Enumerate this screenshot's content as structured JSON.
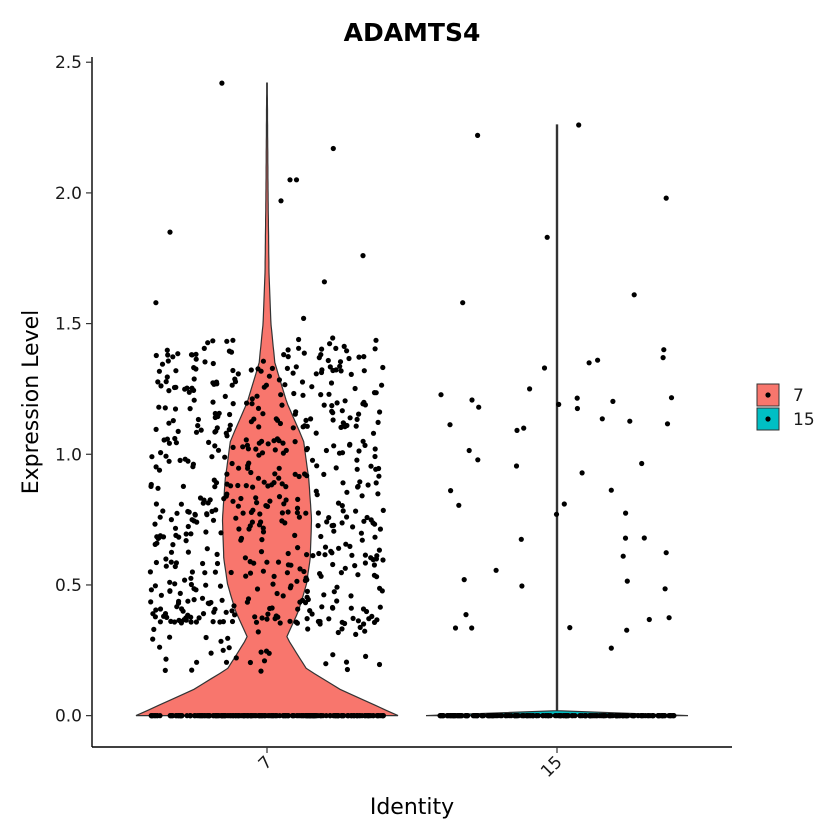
{
  "chart_data": {
    "type": "violin",
    "title": "ADAMTS4",
    "xlabel": "Identity",
    "ylabel": "Expression Level",
    "categories": [
      "7",
      "15"
    ],
    "ylim": [
      -0.12,
      2.52
    ],
    "yticks": [
      "0.0",
      "0.5",
      "1.0",
      "1.5",
      "2.0",
      "2.5"
    ],
    "grid": false,
    "legend_position": "right",
    "legend": [
      {
        "label": "7",
        "color": "#F8766D"
      },
      {
        "label": "15",
        "color": "#00BFC4"
      }
    ],
    "series": [
      {
        "name": "7",
        "color": "#F8766D",
        "max": 2.42,
        "zero_count": 230,
        "nonzero_count": 620,
        "nonzero_range": [
          0.17,
          2.42
        ],
        "density_profile": [
          [
            0.0,
            1.0
          ],
          [
            0.1,
            0.56
          ],
          [
            0.18,
            0.3
          ],
          [
            0.3,
            0.15
          ],
          [
            0.4,
            0.24
          ],
          [
            0.5,
            0.3
          ],
          [
            0.6,
            0.33
          ],
          [
            0.75,
            0.34
          ],
          [
            0.9,
            0.32
          ],
          [
            1.05,
            0.28
          ],
          [
            1.2,
            0.15
          ],
          [
            1.35,
            0.06
          ],
          [
            1.5,
            0.03
          ],
          [
            1.7,
            0.015
          ],
          [
            2.0,
            0.008
          ],
          [
            2.42,
            0.002
          ]
        ],
        "high_points": [
          2.42,
          2.17,
          2.05,
          2.05,
          1.97,
          1.85,
          1.76,
          1.66,
          1.58,
          1.52
        ]
      },
      {
        "name": "15",
        "color": "#00BFC4",
        "max": 2.26,
        "zero_count": 200,
        "nonzero_count": 55,
        "nonzero_range": [
          0.25,
          2.26
        ],
        "density_profile": [
          [
            0.0,
            1.0
          ],
          [
            2.26,
            0.0
          ]
        ],
        "high_points": [
          2.26,
          2.22,
          1.98,
          1.83,
          1.61,
          1.58,
          1.4,
          1.37,
          1.36,
          1.35,
          1.33,
          1.25,
          1.18,
          1.1
        ]
      }
    ]
  }
}
